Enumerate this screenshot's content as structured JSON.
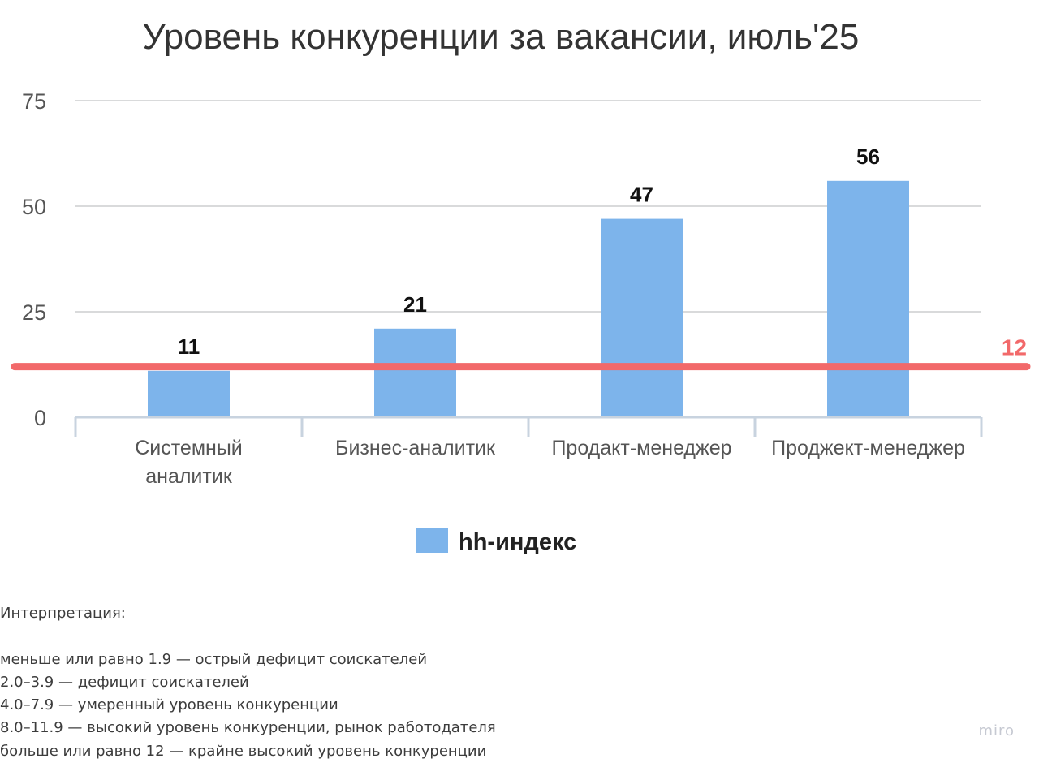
{
  "chart_data": {
    "type": "bar",
    "title": "Уровень конкуренции за вакансии, июль'25",
    "categories": [
      [
        "Системный",
        "аналитик"
      ],
      [
        "Бизнес-аналитик"
      ],
      [
        "Продакт-менеджер"
      ],
      [
        "Проджект-менеджер"
      ]
    ],
    "series": [
      {
        "name": "hh-индекс",
        "values": [
          11,
          21,
          47,
          56
        ],
        "color": "#7db4eb"
      }
    ],
    "ylim": [
      0,
      75
    ],
    "yticks": [
      0,
      25,
      50,
      75
    ],
    "grid": true,
    "reference_line": {
      "value": 12,
      "label": "12",
      "color": "#f2696a"
    },
    "legend_position": "bottom"
  },
  "interpretation": {
    "heading": "Интерпретация:",
    "lines": [
      "меньше или равно 1.9 — острый дефицит соискателей",
      "2.0–3.9 — дефицит соискателей",
      "4.0–7.9 — умеренный уровень конкуренции",
      "8.0–11.9 — высокий уровень конкуренции, рынок работодателя",
      "больше или равно 12 — крайне высокий уровень конкуренции"
    ]
  },
  "brand": "miro"
}
